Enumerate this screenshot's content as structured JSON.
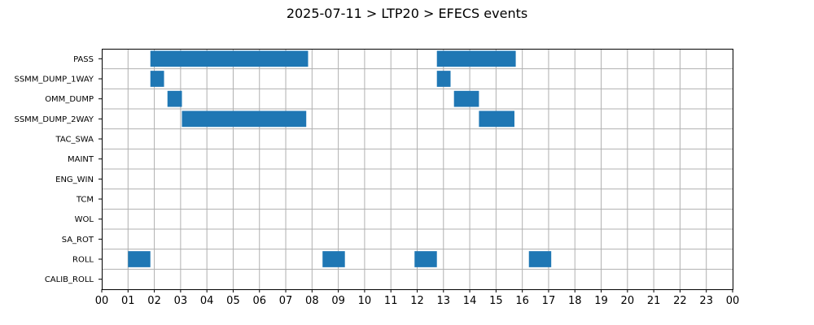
{
  "chart_data": {
    "type": "gantt",
    "title": "2025-07-11 > LTP20 > EFECS events",
    "x_unit": "hour",
    "xlim": [
      0,
      24
    ],
    "x_tick_labels": [
      "00",
      "01",
      "02",
      "03",
      "04",
      "05",
      "06",
      "07",
      "08",
      "09",
      "10",
      "11",
      "12",
      "13",
      "14",
      "15",
      "16",
      "17",
      "18",
      "19",
      "20",
      "21",
      "22",
      "23",
      "00"
    ],
    "grid": true,
    "bar_color": "#1f77b4",
    "categories": [
      "PASS",
      "SSMM_DUMP_1WAY",
      "OMM_DUMP",
      "SSMM_DUMP_2WAY",
      "TAC_SWA",
      "MAINT",
      "ENG_WIN",
      "TCM",
      "WOL",
      "SA_ROT",
      "ROLL",
      "CALIB_ROLL"
    ],
    "events": [
      {
        "category": "PASS",
        "start": 1.85,
        "end": 7.85
      },
      {
        "category": "PASS",
        "start": 12.75,
        "end": 15.75
      },
      {
        "category": "SSMM_DUMP_1WAY",
        "start": 1.85,
        "end": 2.37
      },
      {
        "category": "SSMM_DUMP_1WAY",
        "start": 12.75,
        "end": 13.27
      },
      {
        "category": "OMM_DUMP",
        "start": 2.5,
        "end": 3.05
      },
      {
        "category": "OMM_DUMP",
        "start": 13.4,
        "end": 14.35
      },
      {
        "category": "SSMM_DUMP_2WAY",
        "start": 3.05,
        "end": 7.78
      },
      {
        "category": "SSMM_DUMP_2WAY",
        "start": 14.35,
        "end": 15.7
      },
      {
        "category": "ROLL",
        "start": 1.0,
        "end": 1.85
      },
      {
        "category": "ROLL",
        "start": 8.4,
        "end": 9.25
      },
      {
        "category": "ROLL",
        "start": 11.9,
        "end": 12.75
      },
      {
        "category": "ROLL",
        "start": 16.25,
        "end": 17.1
      }
    ]
  }
}
